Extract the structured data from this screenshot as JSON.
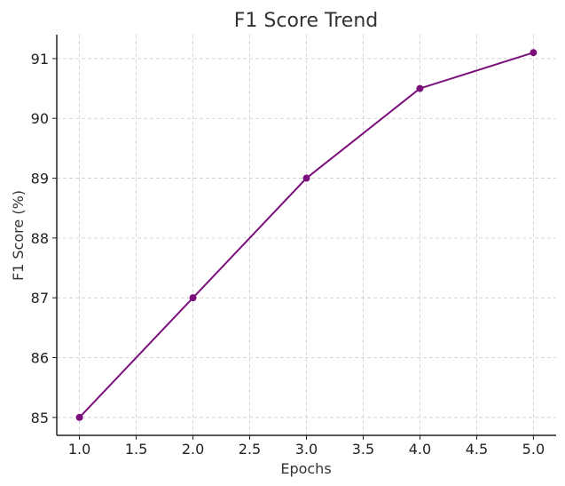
{
  "chart_data": {
    "type": "line",
    "title": "F1 Score Trend",
    "xlabel": "Epochs",
    "ylabel": "F1 Score (%)",
    "xlim": [
      0.8,
      5.2
    ],
    "ylim": [
      84.7,
      91.4
    ],
    "xticks": [
      "1.0",
      "1.5",
      "2.0",
      "2.5",
      "3.0",
      "3.5",
      "4.0",
      "4.5",
      "5.0"
    ],
    "yticks": [
      "85",
      "86",
      "87",
      "88",
      "89",
      "90",
      "91"
    ],
    "grid": true,
    "line_color": "#7b0f7b",
    "series": [
      {
        "x": [
          1.0,
          2.0,
          3.0,
          4.0,
          5.0
        ],
        "values": [
          85.0,
          87.0,
          89.0,
          90.5,
          91.1
        ]
      }
    ]
  }
}
